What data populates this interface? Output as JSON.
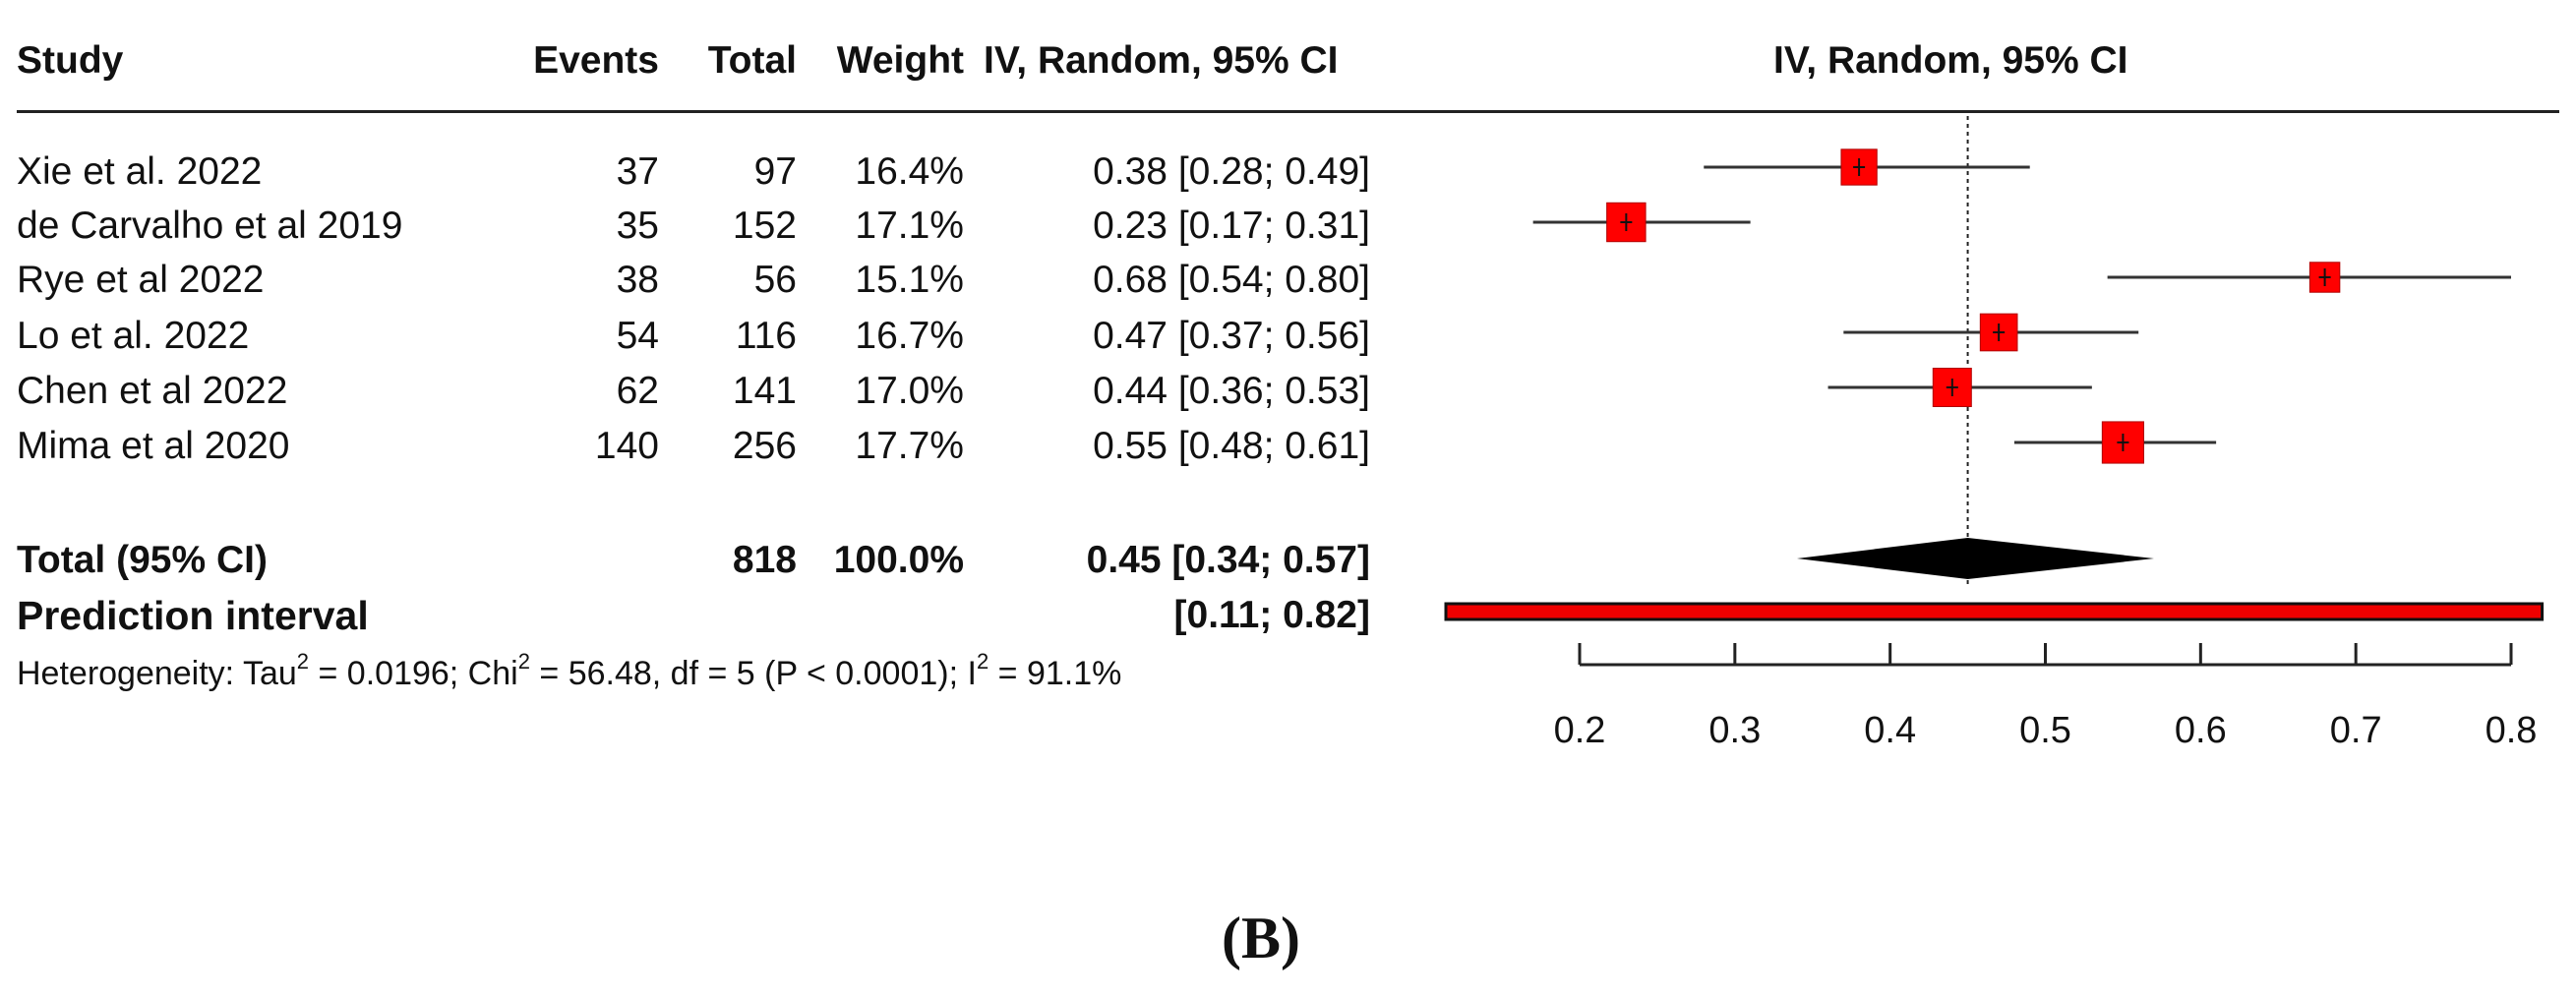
{
  "chart_data": {
    "type": "forest",
    "columns": {
      "study": "Study",
      "events": "Events",
      "total": "Total",
      "weight": "Weight",
      "ci": "IV, Random, 95% CI",
      "plot": "IV, Random, 95% CI"
    },
    "studies": [
      {
        "name": "Xie et al. 2022",
        "events": "37",
        "total": "97",
        "weight": "16.4%",
        "ci_text": "0.38 [0.28; 0.49]",
        "est": 0.38,
        "lo": 0.28,
        "hi": 0.49,
        "w": 16.4
      },
      {
        "name": "de Carvalho et al 2019",
        "events": "35",
        "total": "152",
        "weight": "17.1%",
        "ci_text": "0.23 [0.17; 0.31]",
        "est": 0.23,
        "lo": 0.17,
        "hi": 0.31,
        "w": 17.1
      },
      {
        "name": "Rye et al 2022",
        "events": "38",
        "total": "56",
        "weight": "15.1%",
        "ci_text": "0.68 [0.54; 0.80]",
        "est": 0.68,
        "lo": 0.54,
        "hi": 0.8,
        "w": 15.1
      },
      {
        "name": "Lo et al. 2022",
        "events": "54",
        "total": "116",
        "weight": "16.7%",
        "ci_text": "0.47 [0.37; 0.56]",
        "est": 0.47,
        "lo": 0.37,
        "hi": 0.56,
        "w": 16.7
      },
      {
        "name": "Chen et al 2022",
        "events": "62",
        "total": "141",
        "weight": "17.0%",
        "ci_text": "0.44 [0.36; 0.53]",
        "est": 0.44,
        "lo": 0.36,
        "hi": 0.53,
        "w": 17.0
      },
      {
        "name": "Mima et al 2020",
        "events": "140",
        "total": "256",
        "weight": "17.7%",
        "ci_text": "0.55 [0.48; 0.61]",
        "est": 0.55,
        "lo": 0.48,
        "hi": 0.61,
        "w": 17.7
      }
    ],
    "pooled": {
      "label": "Total (95% CI)",
      "total": "818",
      "weight": "100.0%",
      "ci_text": "0.45 [0.34; 0.57]",
      "est": 0.45,
      "lo": 0.34,
      "hi": 0.57
    },
    "prediction": {
      "label": "Prediction interval",
      "ci_text": "[0.11; 0.82]",
      "lo": 0.11,
      "hi": 0.82
    },
    "heterogeneity": {
      "prefix": "Heterogeneity: Tau",
      "tau2": "= 0.0196; Chi",
      "chi2": "= 56.48, df = 5 (P < 0.0001); I",
      "i2": "= 91.1%",
      "sup": "2"
    },
    "x_ticks": [
      0.2,
      0.3,
      0.4,
      0.5,
      0.6,
      0.7,
      0.8
    ],
    "x_tick_labels": [
      "0.2",
      "0.3",
      "0.4",
      "0.5",
      "0.6",
      "0.7",
      "0.8"
    ],
    "xlim": [
      0.2,
      0.8
    ],
    "reference_line": 0.45,
    "colors": {
      "square": "#ff0000",
      "diamond": "#000000",
      "prediction_fill": "#ee0000"
    }
  },
  "caption": "(B)"
}
